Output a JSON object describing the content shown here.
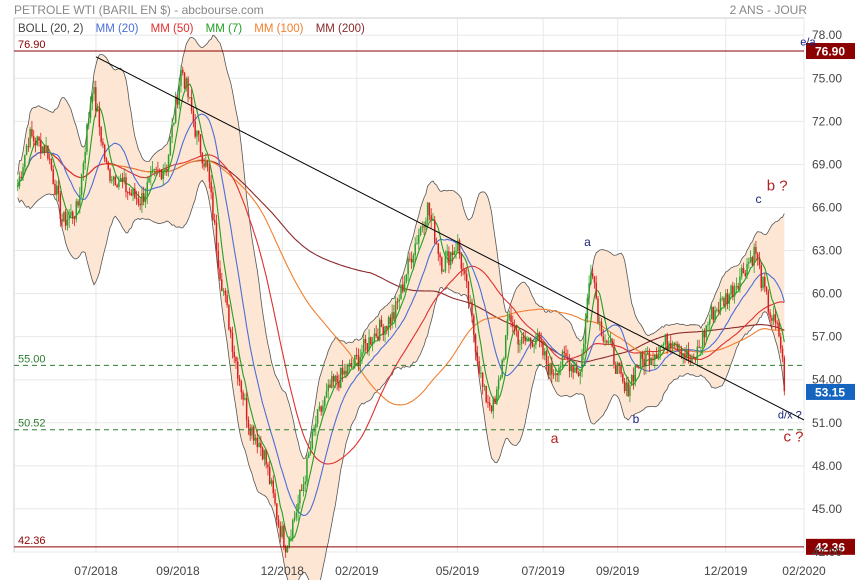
{
  "header": {
    "title": "PETROLE WTI (BARIL EN $) - abcbourse.com",
    "period": "2 ANS - JOUR"
  },
  "legend": [
    {
      "label": "BOLL (20, 2)",
      "color": "#444444"
    },
    {
      "label": "MM (20)",
      "color": "#4a6fd8"
    },
    {
      "label": "MM (50)",
      "color": "#e03030"
    },
    {
      "label": "MM (7)",
      "color": "#22a022"
    },
    {
      "label": "MM (100)",
      "color": "#f08030"
    },
    {
      "label": "MM (200)",
      "color": "#8b2a2a"
    }
  ],
  "colors": {
    "up_candle": "#2aa02a",
    "down_candle": "#d42020",
    "band_fill": "#fde6d3",
    "band_line": "#555555",
    "grid": "#e8e8e8",
    "level_line_solid": "#8b0000",
    "level_line_dashed": "#2e7d32",
    "trendline": "#000000",
    "annotation_red": "#b22222",
    "annotation_blue": "#1a237e",
    "last_price_bg": "#1565c0"
  },
  "chart_data": {
    "type": "candlestick",
    "instrument": "PETROLE WTI (BARIL EN $)",
    "period": "2 ANS - JOUR",
    "y_ticks": [
      "78.00",
      "75.00",
      "72.00",
      "69.00",
      "66.00",
      "63.00",
      "60.00",
      "57.00",
      "54.00",
      "51.00",
      "48.00",
      "45.00",
      "42.00"
    ],
    "ylim": [
      42.0,
      79.2
    ],
    "x_ticks": [
      "07/2018",
      "09/2018",
      "12/2018",
      "02/2019",
      "05/2019",
      "07/2019",
      "09/2019",
      "12/2019",
      "02/2020"
    ],
    "x_tick_months": [
      0,
      2.2,
      5.0,
      7.0,
      9.7,
      12.0,
      14.0,
      16.9,
      19.0
    ],
    "x_range_months": [
      -2.2,
      19.0
    ],
    "price_anchors": [
      {
        "m": -2.1,
        "p": 67.5
      },
      {
        "m": -1.8,
        "p": 71.0
      },
      {
        "m": -1.3,
        "p": 70.0
      },
      {
        "m": -0.9,
        "p": 65.0
      },
      {
        "m": -0.5,
        "p": 65.8
      },
      {
        "m": -0.1,
        "p": 74.5
      },
      {
        "m": 0.3,
        "p": 68.5
      },
      {
        "m": 0.6,
        "p": 68.0
      },
      {
        "m": 0.9,
        "p": 67.0
      },
      {
        "m": 1.2,
        "p": 66.5
      },
      {
        "m": 1.5,
        "p": 68.0
      },
      {
        "m": 1.9,
        "p": 69.0
      },
      {
        "m": 2.3,
        "p": 75.8
      },
      {
        "m": 2.7,
        "p": 71.0
      },
      {
        "m": 3.0,
        "p": 68.5
      },
      {
        "m": 3.3,
        "p": 62.0
      },
      {
        "m": 3.7,
        "p": 56.0
      },
      {
        "m": 4.1,
        "p": 51.0
      },
      {
        "m": 4.5,
        "p": 49.0
      },
      {
        "m": 4.9,
        "p": 44.0
      },
      {
        "m": 5.1,
        "p": 42.5
      },
      {
        "m": 5.5,
        "p": 46.0
      },
      {
        "m": 5.9,
        "p": 51.0
      },
      {
        "m": 6.3,
        "p": 53.5
      },
      {
        "m": 6.9,
        "p": 55.0
      },
      {
        "m": 7.4,
        "p": 57.0
      },
      {
        "m": 8.0,
        "p": 58.5
      },
      {
        "m": 8.5,
        "p": 63.0
      },
      {
        "m": 8.9,
        "p": 66.0
      },
      {
        "m": 9.3,
        "p": 62.0
      },
      {
        "m": 9.7,
        "p": 63.5
      },
      {
        "m": 10.0,
        "p": 59.5
      },
      {
        "m": 10.4,
        "p": 53.0
      },
      {
        "m": 10.7,
        "p": 52.0
      },
      {
        "m": 11.1,
        "p": 58.5
      },
      {
        "m": 11.4,
        "p": 56.5
      },
      {
        "m": 11.8,
        "p": 57.0
      },
      {
        "m": 12.2,
        "p": 54.5
      },
      {
        "m": 12.6,
        "p": 55.5
      },
      {
        "m": 13.0,
        "p": 54.5
      },
      {
        "m": 13.3,
        "p": 62.5
      },
      {
        "m": 13.5,
        "p": 58.0
      },
      {
        "m": 13.9,
        "p": 55.5
      },
      {
        "m": 14.2,
        "p": 53.0
      },
      {
        "m": 14.5,
        "p": 55.0
      },
      {
        "m": 15.0,
        "p": 56.0
      },
      {
        "m": 15.5,
        "p": 57.0
      },
      {
        "m": 16.0,
        "p": 55.0
      },
      {
        "m": 16.5,
        "p": 58.5
      },
      {
        "m": 17.0,
        "p": 60.0
      },
      {
        "m": 17.4,
        "p": 61.8
      },
      {
        "m": 17.7,
        "p": 63.0
      },
      {
        "m": 17.85,
        "p": 61.0
      },
      {
        "m": 18.1,
        "p": 58.5
      },
      {
        "m": 18.35,
        "p": 57.0
      },
      {
        "m": 18.5,
        "p": 53.2
      }
    ],
    "levels": [
      {
        "value": 76.9,
        "label": "76.90",
        "style": "solid",
        "badge": "76.90"
      },
      {
        "value": 55.0,
        "label": "55.00",
        "style": "dashed"
      },
      {
        "value": 50.52,
        "label": "50.52",
        "style": "dashed"
      },
      {
        "value": 42.36,
        "label": "42.36",
        "style": "solid",
        "badge": "42.36"
      }
    ],
    "last_price": "53.15",
    "trendline": {
      "start": {
        "m": 0.0,
        "p": 76.5
      },
      "end": {
        "m": 19.0,
        "p": 51.2
      }
    },
    "annotations": [
      {
        "text": "e/a",
        "m": 18.9,
        "p": 77.3,
        "color": "blue",
        "size": 11
      },
      {
        "text": "a",
        "m": 13.1,
        "p": 63.3,
        "color": "blue",
        "size": 12
      },
      {
        "text": "a",
        "m": 12.2,
        "p": 49.6,
        "color": "red",
        "size": 14
      },
      {
        "text": "b",
        "m": 14.4,
        "p": 51.0,
        "color": "blue",
        "size": 12
      },
      {
        "text": "c",
        "m": 17.7,
        "p": 66.3,
        "color": "blue",
        "size": 12
      },
      {
        "text": "b ?",
        "m": 18.0,
        "p": 67.2,
        "color": "red",
        "size": 15
      },
      {
        "text": "d/x ?",
        "m": 18.3,
        "p": 51.3,
        "color": "blue",
        "size": 11
      },
      {
        "text": "c ?",
        "m": 18.45,
        "p": 49.7,
        "color": "red",
        "size": 15
      }
    ]
  }
}
